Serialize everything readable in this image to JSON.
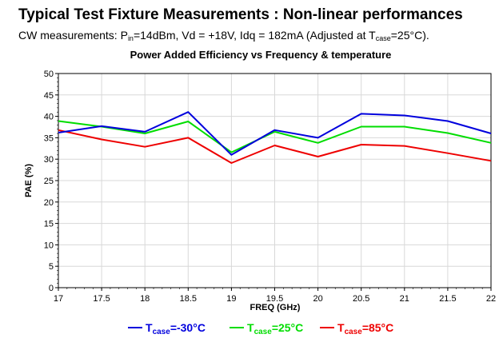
{
  "header": {
    "title": "Typical Test Fixture Measurements : Non-linear performances",
    "subtitle_prefix": "CW measurements: P",
    "subtitle_pin_sub": "in",
    "subtitle_mid": "=14dBm, Vd = +18V, Idq = 182mA (Adjusted at T",
    "subtitle_case_sub": "case",
    "subtitle_suffix": "=25°C)."
  },
  "chart_data": {
    "type": "line",
    "title": "Power Added Efficiency vs Frequency & temperature",
    "xlabel": "FREQ (GHz)",
    "ylabel": "PAE (%)",
    "xlim": [
      17,
      22
    ],
    "ylim": [
      0,
      50
    ],
    "x_ticks": [
      "17",
      "17.5",
      "18",
      "18.5",
      "19",
      "19.5",
      "20",
      "20.5",
      "21",
      "21.5",
      "22"
    ],
    "y_ticks": [
      "0",
      "5",
      "10",
      "15",
      "20",
      "25",
      "30",
      "35",
      "40",
      "45",
      "50"
    ],
    "grid": true,
    "x": [
      17,
      17.5,
      18,
      18.5,
      19,
      19.5,
      20,
      20.5,
      21,
      21.5,
      22
    ],
    "series": [
      {
        "name": "Tcase=-30°C",
        "label_main": "T",
        "label_sub": "case",
        "label_rest": "=-30°C",
        "color": "#0000dd",
        "values": [
          36.2,
          37.7,
          36.4,
          41.0,
          31.0,
          36.8,
          35.0,
          40.6,
          40.2,
          38.9,
          36.0
        ]
      },
      {
        "name": "Tcase=25°C",
        "label_main": "T",
        "label_sub": "case",
        "label_rest": "=25°C",
        "color": "#00dd00",
        "values": [
          38.9,
          37.6,
          36.0,
          38.8,
          31.6,
          36.4,
          33.8,
          37.6,
          37.6,
          36.1,
          33.8
        ]
      },
      {
        "name": "Tcase=85°C",
        "label_main": "T",
        "label_sub": "case",
        "label_rest": "=85°C",
        "color": "#ee0000",
        "values": [
          36.8,
          34.6,
          32.9,
          35.0,
          29.1,
          33.2,
          30.6,
          33.4,
          33.1,
          31.4,
          29.6
        ]
      }
    ],
    "legend_position": "bottom"
  }
}
